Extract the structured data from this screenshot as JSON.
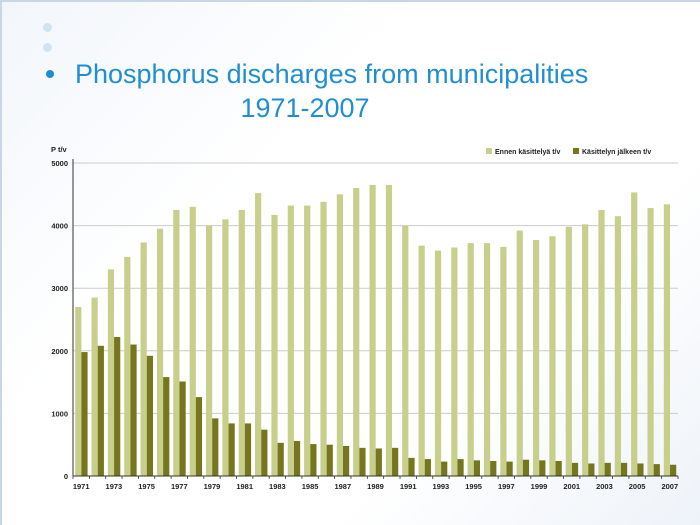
{
  "slide": {
    "title_line1": "Phosphorus discharges from municipalities",
    "title_line2": "1971-2007"
  },
  "colors": {
    "accent": "#1f8fd2",
    "series_before": "#c8cf8a",
    "series_after": "#76761f"
  },
  "chart_data": {
    "type": "bar",
    "ylabel": "P t/v",
    "ylim": [
      0,
      5000
    ],
    "yticks": [
      0,
      1000,
      2000,
      3000,
      4000,
      5000
    ],
    "legend_position": "top-right",
    "categories": [
      "1971",
      "1972",
      "1973",
      "1974",
      "1975",
      "1976",
      "1977",
      "1978",
      "1979",
      "1980",
      "1981",
      "1982",
      "1983",
      "1984",
      "1985",
      "1986",
      "1987",
      "1988",
      "1989",
      "1990",
      "1991",
      "1992",
      "1993",
      "1994",
      "1995",
      "1996",
      "1997",
      "1998",
      "1999",
      "2000",
      "2001",
      "2002",
      "2003",
      "2004",
      "2005",
      "2006",
      "2007"
    ],
    "xtick_labels": [
      "1971",
      "1973",
      "1975",
      "1977",
      "1979",
      "1981",
      "1983",
      "1985",
      "1987",
      "1989",
      "1991",
      "1993",
      "1995",
      "1997",
      "1999",
      "2001",
      "2003",
      "2005",
      "2007"
    ],
    "series": [
      {
        "name": "Ennen käsittelyä t/v",
        "values": [
          2700,
          2850,
          3300,
          3500,
          3730,
          3950,
          4250,
          4300,
          4000,
          4100,
          4250,
          4520,
          4170,
          4320,
          4320,
          4380,
          4500,
          4600,
          4650,
          4650,
          4000,
          3680,
          3600,
          3650,
          3720,
          3720,
          3660,
          3920,
          3770,
          3830,
          3980,
          4020,
          4250,
          4150,
          4530,
          4280,
          4340
        ]
      },
      {
        "name": "Käsittelyn jälkeen t/v",
        "values": [
          1980,
          2080,
          2220,
          2100,
          1920,
          1580,
          1510,
          1260,
          920,
          840,
          840,
          740,
          530,
          560,
          510,
          500,
          480,
          450,
          440,
          450,
          290,
          270,
          230,
          270,
          250,
          240,
          230,
          260,
          250,
          240,
          210,
          200,
          210,
          210,
          200,
          190,
          180
        ]
      }
    ]
  }
}
